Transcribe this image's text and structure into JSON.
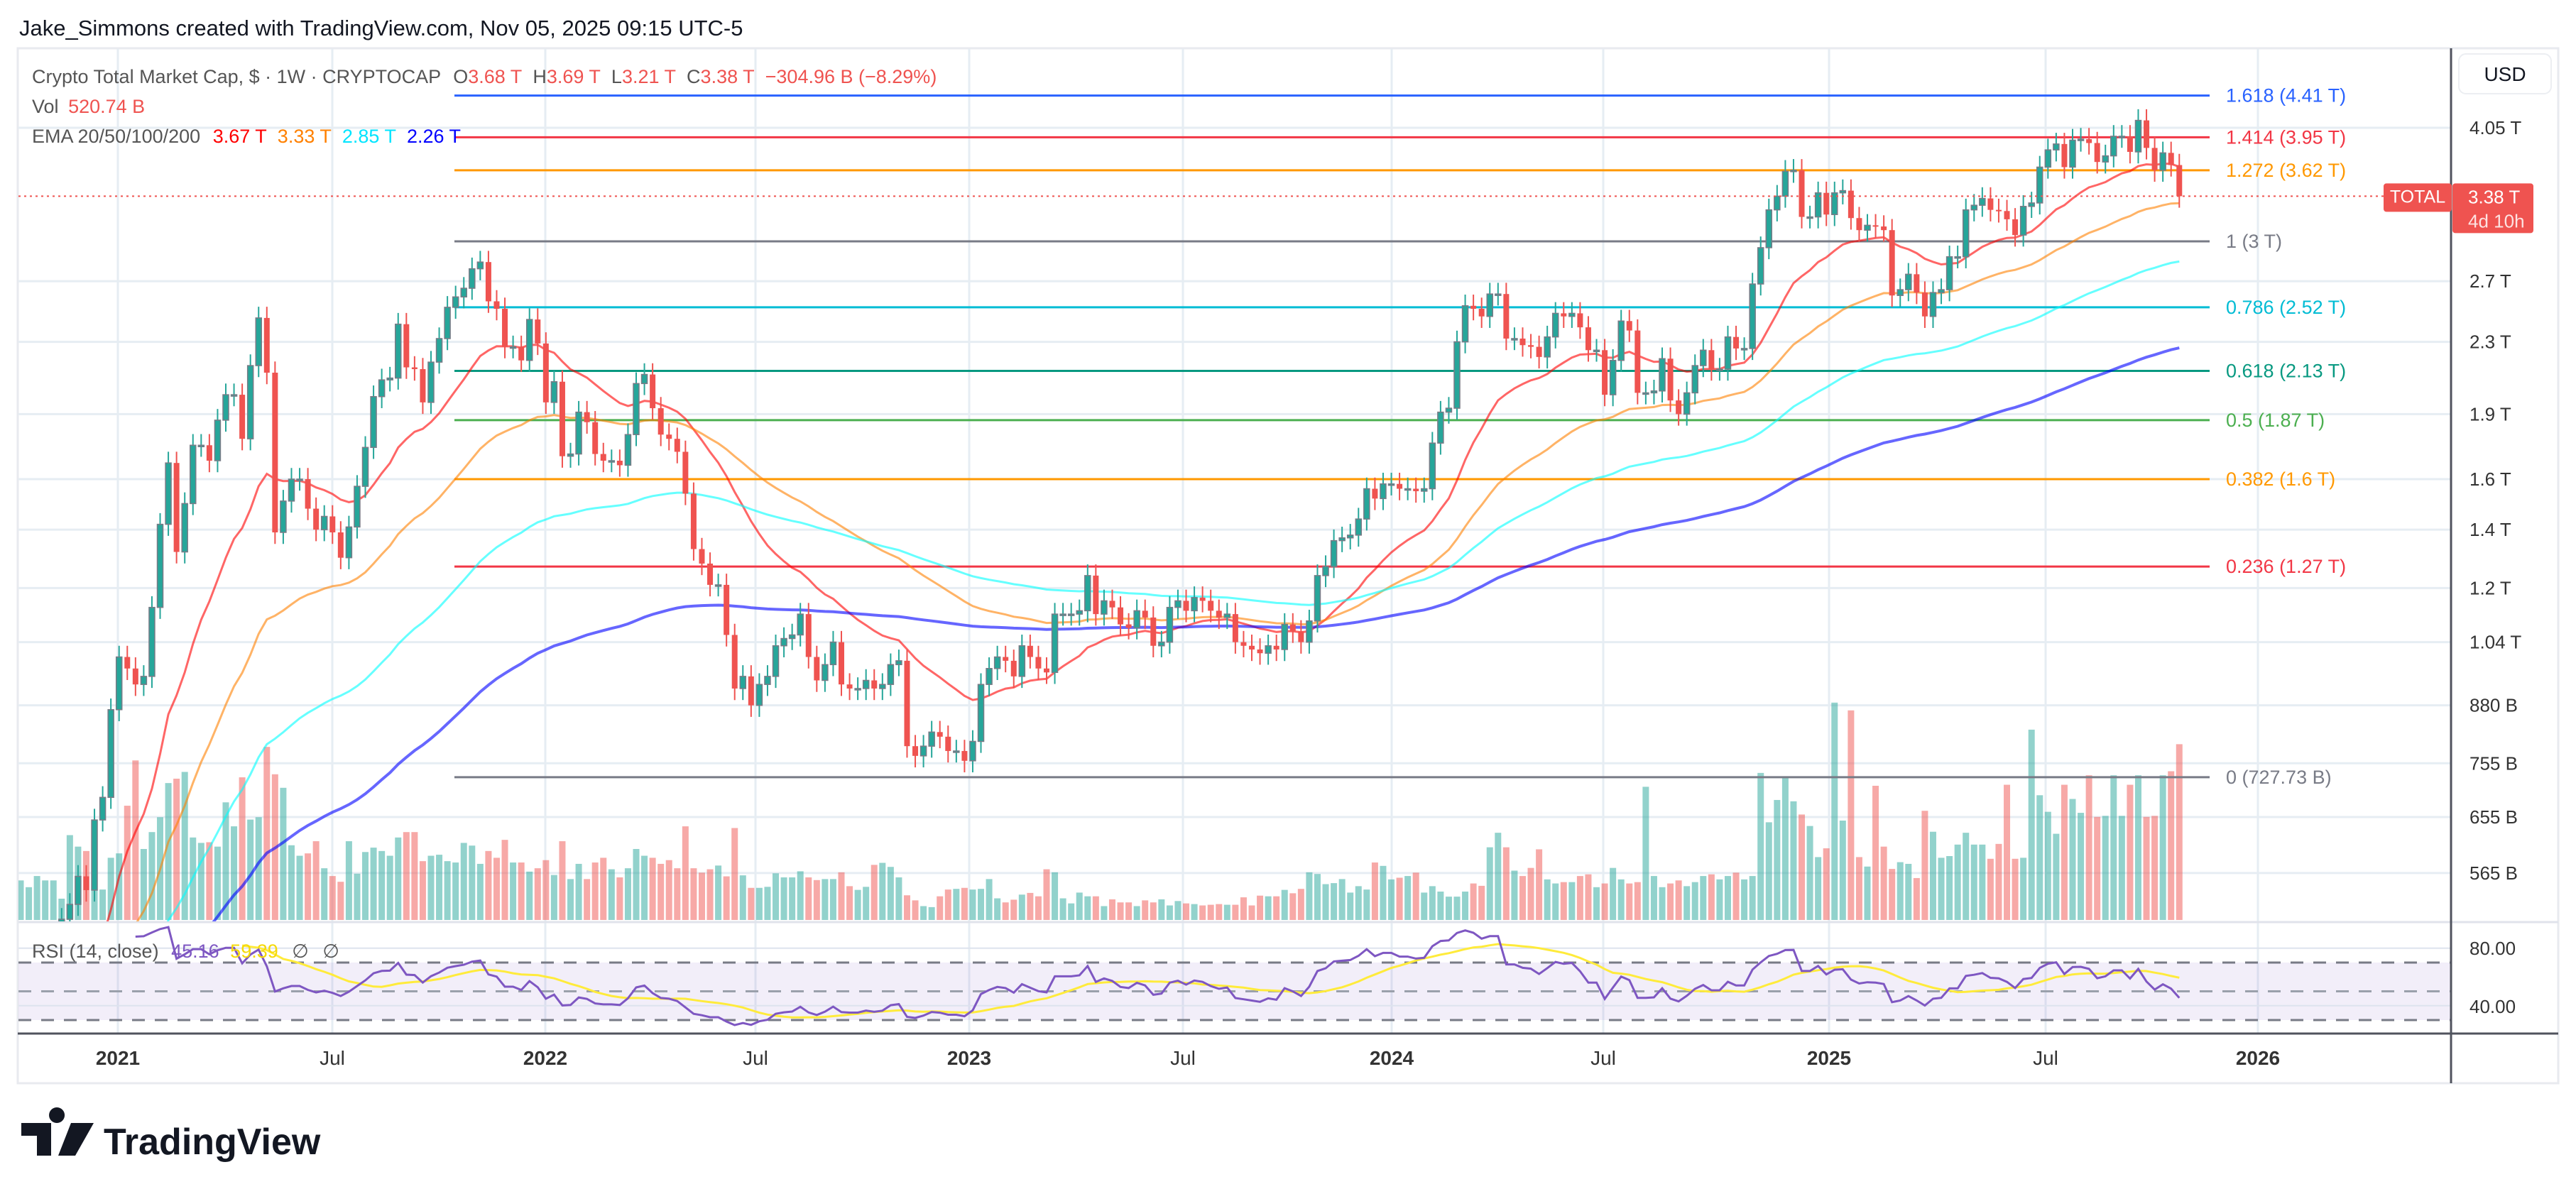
{
  "attribution": "Jake_Simmons created with TradingView.com, Nov 05, 2025 09:15 UTC-5",
  "legend": {
    "symbol": "Crypto Total Market Cap, $ · 1W · CRYPTOCAP",
    "o_label": "O",
    "o": "3.68 T",
    "h_label": "H",
    "h": "3.69 T",
    "l_label": "L",
    "l": "3.21 T",
    "c_label": "C",
    "c": "3.38 T",
    "change": "−304.96 B (−8.29%)",
    "vol_label": "Vol",
    "vol": "520.74 B",
    "ema_label": "EMA 20/50/100/200",
    "ema_values": [
      "3.67 T",
      "3.33 T",
      "2.85 T",
      "2.26 T"
    ]
  },
  "rsi": {
    "label": "RSI (14, close)",
    "value": "45.16",
    "ma": "59.39",
    "na1": "∅",
    "na2": "∅",
    "axis": [
      {
        "label": "80.00",
        "value": 80
      },
      {
        "label": "40.00",
        "value": 40
      }
    ],
    "levels": [
      70,
      50,
      30
    ]
  },
  "price_axis": {
    "currency": "USD",
    "scale": "log",
    "ticks": [
      {
        "label": "4.05 T",
        "value": 4.05
      },
      {
        "label": "2.7 T",
        "value": 2.7
      },
      {
        "label": "2.3 T",
        "value": 2.3
      },
      {
        "label": "1.9 T",
        "value": 1.9
      },
      {
        "label": "1.6 T",
        "value": 1.6
      },
      {
        "label": "1.4 T",
        "value": 1.4
      },
      {
        "label": "1.2 T",
        "value": 1.2
      },
      {
        "label": "1.04 T",
        "value": 1.04
      },
      {
        "label": "880 B",
        "value": 0.88
      },
      {
        "label": "755 B",
        "value": 0.755
      },
      {
        "label": "655 B",
        "value": 0.655
      },
      {
        "label": "565 B",
        "value": 0.565
      }
    ]
  },
  "last_price": {
    "symbol": "TOTAL",
    "price": "3.38 T",
    "countdown": "4d 10h",
    "value": 3.38
  },
  "time_axis": [
    "2021",
    "Jul",
    "2022",
    "Jul",
    "2023",
    "Jul",
    "2024",
    "Jul",
    "2025",
    "Jul",
    "2026"
  ],
  "logo": "TradingView",
  "colors": {
    "up": "#26a69a",
    "down": "#ef5350",
    "ema20": "#ff0000",
    "ema50": "#ff8000",
    "ema100": "#00ffff",
    "ema200": "#0000ff",
    "rsi": "#7e57c2",
    "rsi_ma": "#ffeb3b",
    "last_price": "#ef5350"
  },
  "chart_data": {
    "type": "candlestick",
    "interval": "1W",
    "y_scale": "log",
    "units": "T (USD trillions); volume in B",
    "ema_periods": [
      20,
      50,
      100,
      200
    ],
    "closes": [
      0.36,
      0.38,
      0.41,
      0.44,
      0.47,
      0.5,
      0.52,
      0.56,
      0.54,
      0.65,
      0.69,
      0.87,
      1.0,
      0.97,
      0.93,
      0.95,
      1.14,
      1.42,
      1.67,
      1.32,
      1.5,
      1.75,
      1.75,
      1.68,
      1.87,
      2.0,
      2.0,
      1.78,
      2.16,
      2.45,
      2.12,
      1.39,
      1.51,
      1.6,
      1.6,
      1.48,
      1.4,
      1.45,
      1.39,
      1.3,
      1.41,
      1.57,
      1.74,
      1.99,
      2.08,
      2.09,
      2.41,
      2.15,
      2.14,
      1.96,
      2.18,
      2.32,
      2.52,
      2.59,
      2.65,
      2.79,
      2.84,
      2.56,
      2.51,
      2.27,
      2.27,
      2.19,
      2.44,
      2.29,
      1.96,
      2.07,
      1.7,
      1.71,
      1.91,
      1.86,
      1.71,
      1.68,
      1.68,
      1.66,
      1.8,
      2.06,
      2.11,
      1.93,
      1.8,
      1.78,
      1.72,
      1.54,
      1.33,
      1.28,
      1.21,
      1.21,
      1.06,
      0.92,
      0.95,
      0.88,
      0.93,
      0.95,
      1.03,
      1.05,
      1.06,
      1.12,
      1.0,
      0.94,
      0.98,
      1.04,
      0.93,
      0.92,
      0.92,
      0.94,
      0.92,
      0.93,
      0.98,
      0.99,
      0.79,
      0.77,
      0.79,
      0.82,
      0.81,
      0.78,
      0.78,
      0.76,
      0.8,
      0.93,
      0.97,
      1.0,
      0.99,
      0.95,
      1.03,
      1.0,
      0.97,
      0.96,
      1.12,
      1.12,
      1.12,
      1.13,
      1.24,
      1.12,
      1.16,
      1.14,
      1.09,
      1.08,
      1.13,
      1.11,
      1.03,
      1.04,
      1.14,
      1.16,
      1.13,
      1.17,
      1.16,
      1.13,
      1.11,
      1.12,
      1.04,
      1.03,
      1.02,
      1.01,
      1.03,
      1.02,
      1.09,
      1.07,
      1.04,
      1.1,
      1.24,
      1.27,
      1.36,
      1.37,
      1.38,
      1.44,
      1.56,
      1.52,
      1.58,
      1.58,
      1.56,
      1.56,
      1.55,
      1.56,
      1.76,
      1.91,
      1.93,
      2.3,
      2.53,
      2.51,
      2.46,
      2.61,
      2.61,
      2.32,
      2.32,
      2.28,
      2.27,
      2.21,
      2.33,
      2.48,
      2.46,
      2.48,
      2.39,
      2.25,
      2.25,
      2.0,
      2.19,
      2.43,
      2.37,
      2.01,
      2.01,
      2.02,
      2.2,
      1.97,
      1.9,
      2.01,
      2.16,
      2.25,
      2.14,
      2.14,
      2.33,
      2.26,
      2.26,
      2.68,
      2.95,
      3.26,
      3.38,
      3.61,
      3.62,
      3.2,
      3.2,
      3.41,
      3.22,
      3.41,
      3.43,
      3.19,
      3.09,
      3.13,
      3.12,
      3.09,
      2.6,
      2.64,
      2.75,
      2.62,
      2.46,
      2.62,
      2.64,
      2.88,
      2.88,
      3.26,
      3.3,
      3.36,
      3.26,
      3.25,
      3.18,
      3.05,
      3.29,
      3.32,
      3.65,
      3.82,
      3.88,
      3.65,
      3.92,
      3.93,
      3.89,
      3.7,
      3.76,
      3.96,
      3.96,
      3.8,
      4.13,
      3.84,
      3.62,
      3.79,
      3.67,
      3.38
    ],
    "volumes": [
      117,
      97,
      130,
      117,
      117,
      63,
      251,
      217,
      204,
      90,
      90,
      184,
      197,
      338,
      472,
      210,
      260,
      304,
      405,
      418,
      438,
      244,
      228,
      230,
      217,
      348,
      277,
      422,
      297,
      304,
      512,
      431,
      391,
      221,
      190,
      197,
      233,
      153,
      130,
      113,
      233,
      137,
      201,
      214,
      204,
      190,
      244,
      260,
      260,
      174,
      190,
      193,
      174,
      170,
      228,
      220,
      166,
      204,
      184,
      237,
      170,
      170,
      143,
      153,
      177,
      133,
      233,
      121,
      166,
      121,
      170,
      184,
      150,
      126,
      153,
      210,
      190,
      184,
      166,
      177,
      153,
      277,
      153,
      140,
      150,
      161,
      129,
      272,
      132,
      95,
      95,
      98,
      138,
      126,
      126,
      144,
      126,
      118,
      121,
      121,
      141,
      100,
      89,
      98,
      163,
      169,
      157,
      126,
      73,
      58,
      41,
      38,
      70,
      90,
      92,
      95,
      90,
      92,
      121,
      64,
      52,
      60,
      75,
      80,
      70,
      150,
      141,
      64,
      49,
      81,
      70,
      70,
      41,
      61,
      52,
      52,
      41,
      58,
      52,
      61,
      43,
      56,
      49,
      47,
      43,
      45,
      47,
      45,
      45,
      67,
      43,
      72,
      70,
      70,
      89,
      79,
      92,
      141,
      136,
      106,
      109,
      121,
      81,
      100,
      90,
      170,
      160,
      120,
      125,
      130,
      140,
      81,
      100,
      84,
      69,
      69,
      84,
      108,
      101,
      215,
      258,
      215,
      146,
      130,
      154,
      209,
      120,
      108,
      112,
      112,
      130,
      135,
      97,
      108,
      154,
      120,
      108,
      112,
      394,
      130,
      97,
      108,
      117,
      100,
      112,
      130,
      135,
      120,
      130,
      140,
      120,
      130,
      435,
      289,
      355,
      425,
      351,
      312,
      278,
      186,
      212,
      643,
      294,
      620,
      186,
      158,
      397,
      217,
      151,
      171,
      166,
      124,
      323,
      261,
      184,
      189,
      223,
      258,
      223,
      223,
      181,
      225,
      400,
      181,
      184,
      563,
      369,
      320,
      255,
      400,
      358,
      317,
      428,
      305,
      308,
      428,
      308,
      400,
      428,
      305,
      308,
      428,
      440,
      520
    ],
    "fib_levels": [
      {
        "label": "1.618 (4.41 T)",
        "value": 4.41,
        "color": "#2962ff"
      },
      {
        "label": "1.414 (3.95 T)",
        "value": 3.95,
        "color": "#f23645"
      },
      {
        "label": "1.272 (3.62 T)",
        "value": 3.62,
        "color": "#ff9800"
      },
      {
        "label": "1 (3 T)",
        "value": 3.0,
        "color": "#787b86"
      },
      {
        "label": "0.786 (2.52 T)",
        "value": 2.52,
        "color": "#00bcd4"
      },
      {
        "label": "0.618 (2.13 T)",
        "value": 2.13,
        "color": "#089981"
      },
      {
        "label": "0.5 (1.87 T)",
        "value": 1.87,
        "color": "#4caf50"
      },
      {
        "label": "0.382 (1.6 T)",
        "value": 1.6,
        "color": "#ff9800"
      },
      {
        "label": "0.236 (1.27 T)",
        "value": 1.27,
        "color": "#f23645"
      },
      {
        "label": "0 (727.73 B)",
        "value": 0.72773,
        "color": "#787b86"
      }
    ]
  }
}
